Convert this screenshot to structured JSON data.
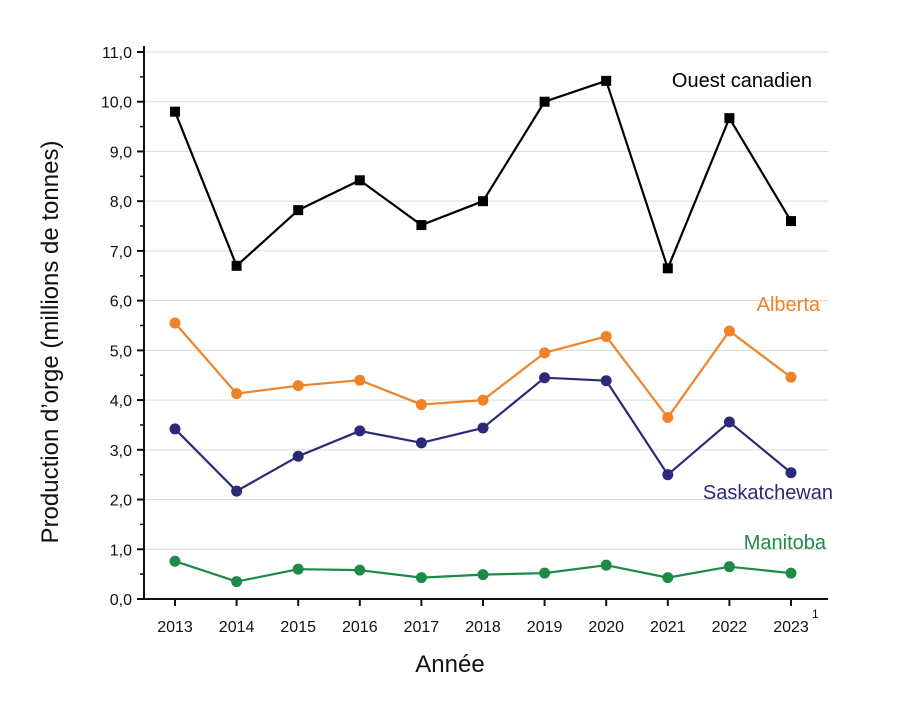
{
  "chart_data": {
    "type": "line",
    "title": "",
    "xlabel": "Année",
    "ylabel": "Production d’orge (millions de tonnes)",
    "categories": [
      "2013",
      "2014",
      "2015",
      "2016",
      "2017",
      "2018",
      "2019",
      "2020",
      "2021",
      "2022",
      "2023"
    ],
    "last_category_footnote": "1",
    "ylim": [
      0,
      11
    ],
    "yticks": [
      "0,0",
      "1,0",
      "2,0",
      "3,0",
      "4,0",
      "5,0",
      "6,0",
      "7,0",
      "8,0",
      "9,0",
      "10,0",
      "11,0"
    ],
    "grid": true,
    "legend": "inline labels",
    "series": [
      {
        "name": "Ouest canadien",
        "color": "#000000",
        "marker": "square",
        "values": [
          9.8,
          6.7,
          7.82,
          8.42,
          7.52,
          8.0,
          10.0,
          10.42,
          6.65,
          9.67,
          7.6
        ]
      },
      {
        "name": "Alberta",
        "color": "#f0822a",
        "marker": "circle",
        "values": [
          5.55,
          4.13,
          4.29,
          4.4,
          3.91,
          4.0,
          4.95,
          5.28,
          3.65,
          5.39,
          4.46
        ]
      },
      {
        "name": "Saskatchewan",
        "color": "#2a2a78",
        "marker": "circle",
        "values": [
          3.42,
          2.17,
          2.87,
          3.38,
          3.14,
          3.44,
          4.45,
          4.39,
          2.5,
          3.56,
          2.54
        ]
      },
      {
        "name": "Manitoba",
        "color": "#1d8a48",
        "marker": "circle",
        "values": [
          0.76,
          0.35,
          0.6,
          0.58,
          0.43,
          0.49,
          0.52,
          0.68,
          0.43,
          0.65,
          0.52
        ]
      }
    ]
  }
}
